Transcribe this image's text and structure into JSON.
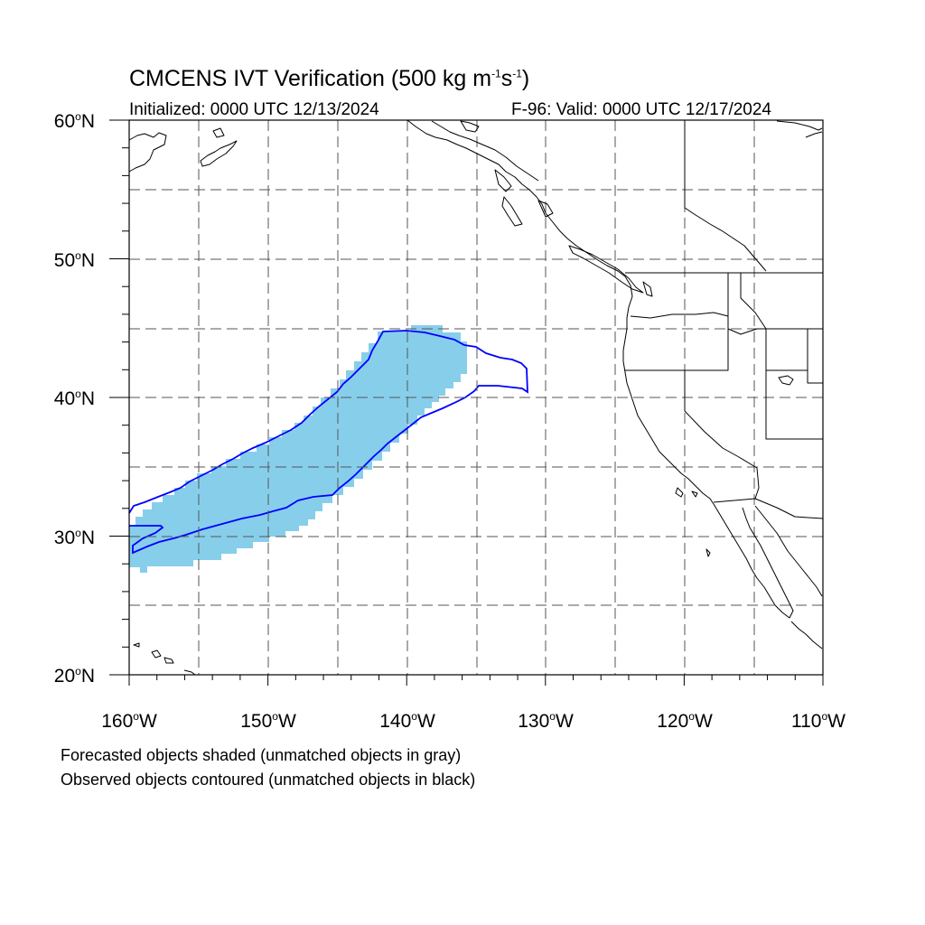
{
  "title": {
    "main": "CMCENS IVT Verification (500 kg m",
    "exp1": "-1",
    "mid": "s",
    "exp2": "-1",
    "end": ")"
  },
  "initialized": "Initialized: 0000 UTC 12/13/2024",
  "valid": "F-96: Valid: 0000 UTC 12/17/2024",
  "notes": {
    "forecast": "Forecasted objects shaded (unmatched objects in gray)",
    "observed": "Observed objects contoured (unmatched objects in black)"
  },
  "axes": {
    "lat_labels": [
      "60",
      "50",
      "40",
      "30",
      "20"
    ],
    "lat_suffix": "N",
    "lon_labels": [
      "160",
      "150",
      "140",
      "130",
      "120",
      "110"
    ],
    "lon_suffix": "W"
  },
  "colors": {
    "forecast_fill": "#87ceeb",
    "observed_contour": "#0000ff",
    "grid": "#555555"
  }
}
